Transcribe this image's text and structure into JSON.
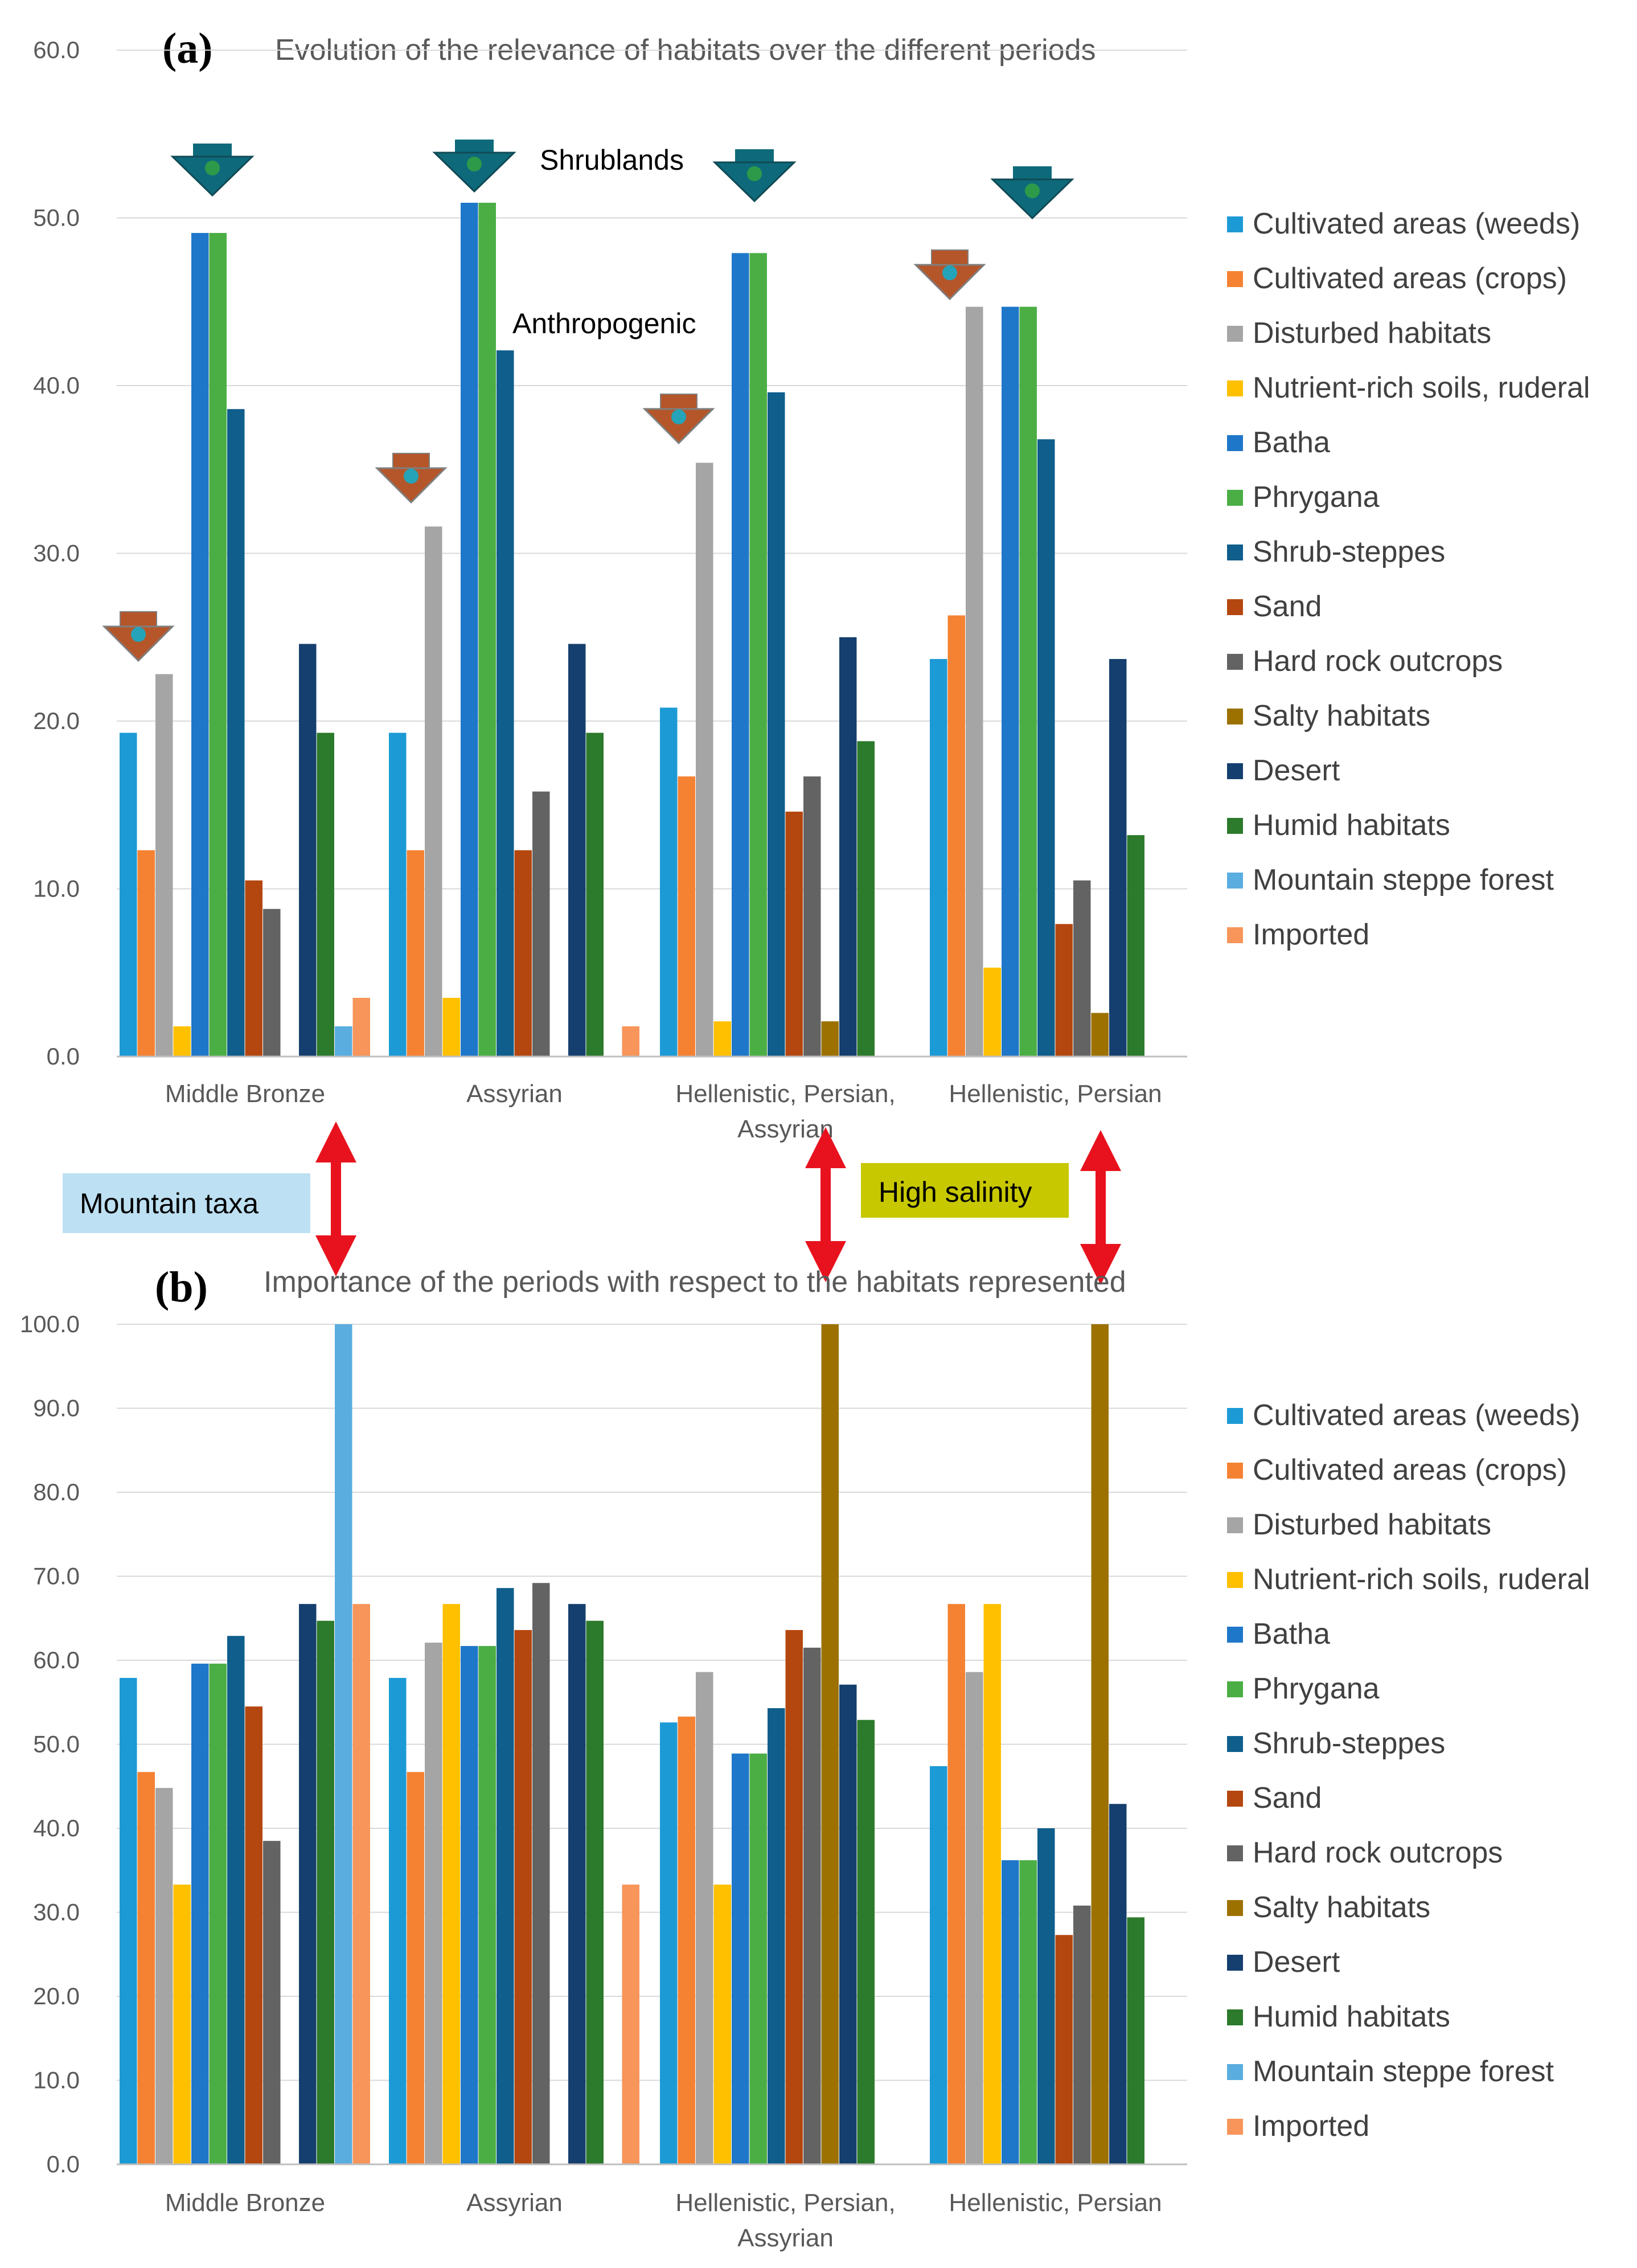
{
  "legend_labels": [
    "Cultivated areas (weeds)",
    "Cultivated areas (crops)",
    "Disturbed habitats",
    "Nutrient-rich soils, ruderal",
    "Batha",
    "Phrygana",
    "Shrub-steppes",
    "Sand",
    "Hard rock outcrops",
    "Salty habitats",
    "Desert",
    "Humid habitats",
    "Mountain steppe forest",
    "Imported"
  ],
  "colors": [
    "#1c9ad6",
    "#f58232",
    "#a5a5a5",
    "#ffc000",
    "#1f77c9",
    "#4bae45",
    "#0f5e8c",
    "#b4470f",
    "#636363",
    "#9c7100",
    "#153f6e",
    "#2c7a2b",
    "#5aaddf",
    "#f7955a"
  ],
  "annotations": {
    "shrublands": "Shrublands",
    "anthropogenic": "Anthropogenic",
    "mountain_taxa": "Mountain taxa",
    "high_salinity": "High salinity"
  },
  "chart_data": [
    {
      "type": "bar",
      "panel_label": "(a)",
      "title": "Evolution of the relevance of habitats over the different periods",
      "categories": [
        "Middle Bronze",
        "Assyrian",
        "Hellenistic, Persian, Assyrian",
        "Hellenistic, Persian"
      ],
      "ylim": [
        0,
        60
      ],
      "yticks": [
        "0.0",
        "10.0",
        "20.0",
        "30.0",
        "40.0",
        "50.0",
        "60.0"
      ],
      "legend_position": "right",
      "series": [
        {
          "name": "Cultivated areas (weeds)",
          "values": [
            19.3,
            19.3,
            20.8,
            23.7
          ]
        },
        {
          "name": "Cultivated areas (crops)",
          "values": [
            12.3,
            12.3,
            16.7,
            26.3
          ]
        },
        {
          "name": "Disturbed habitats",
          "values": [
            22.8,
            31.6,
            35.4,
            44.7
          ]
        },
        {
          "name": "Nutrient-rich soils, ruderal",
          "values": [
            1.8,
            3.5,
            2.1,
            5.3
          ]
        },
        {
          "name": "Batha",
          "values": [
            49.1,
            50.9,
            47.9,
            44.7
          ]
        },
        {
          "name": "Phrygana",
          "values": [
            49.1,
            50.9,
            47.9,
            44.7
          ]
        },
        {
          "name": "Shrub-steppes",
          "values": [
            38.6,
            42.1,
            39.6,
            36.8
          ]
        },
        {
          "name": "Sand",
          "values": [
            10.5,
            12.3,
            14.6,
            7.9
          ]
        },
        {
          "name": "Hard rock outcrops",
          "values": [
            8.8,
            15.8,
            16.7,
            10.5
          ]
        },
        {
          "name": "Salty habitats",
          "values": [
            0,
            0,
            2.1,
            2.6
          ]
        },
        {
          "name": "Desert",
          "values": [
            24.6,
            24.6,
            25.0,
            23.7
          ]
        },
        {
          "name": "Humid habitats",
          "values": [
            19.3,
            19.3,
            18.8,
            13.2
          ]
        },
        {
          "name": "Mountain steppe forest",
          "values": [
            1.8,
            0,
            0,
            0
          ]
        },
        {
          "name": "Imported",
          "values": [
            3.5,
            1.8,
            0,
            0
          ]
        }
      ]
    },
    {
      "type": "bar",
      "panel_label": "(b)",
      "title": "Importance of the periods with respect to the habitats represented",
      "categories": [
        "Middle Bronze",
        "Assyrian",
        "Hellenistic, Persian, Assyrian",
        "Hellenistic, Persian"
      ],
      "ylim": [
        0,
        100
      ],
      "yticks": [
        "0.0",
        "10.0",
        "20.0",
        "30.0",
        "40.0",
        "50.0",
        "60.0",
        "70.0",
        "80.0",
        "90.0",
        "100.0"
      ],
      "legend_position": "right",
      "series": [
        {
          "name": "Cultivated areas (weeds)",
          "values": [
            57.9,
            57.9,
            52.6,
            47.4
          ]
        },
        {
          "name": "Cultivated areas (crops)",
          "values": [
            46.7,
            46.7,
            53.3,
            66.7
          ]
        },
        {
          "name": "Disturbed habitats",
          "values": [
            44.8,
            62.1,
            58.6,
            58.6
          ]
        },
        {
          "name": "Nutrient-rich soils, ruderal",
          "values": [
            33.3,
            66.7,
            33.3,
            66.7
          ]
        },
        {
          "name": "Batha",
          "values": [
            59.6,
            61.7,
            48.9,
            36.2
          ]
        },
        {
          "name": "Phrygana",
          "values": [
            59.6,
            61.7,
            48.9,
            36.2
          ]
        },
        {
          "name": "Shrub-steppes",
          "values": [
            62.9,
            68.6,
            54.3,
            40.0
          ]
        },
        {
          "name": "Sand",
          "values": [
            54.5,
            63.6,
            63.6,
            27.3
          ]
        },
        {
          "name": "Hard rock outcrops",
          "values": [
            38.5,
            69.2,
            61.5,
            30.8
          ]
        },
        {
          "name": "Salty habitats",
          "values": [
            0,
            0,
            100,
            100
          ]
        },
        {
          "name": "Desert",
          "values": [
            66.7,
            66.7,
            57.1,
            42.9
          ]
        },
        {
          "name": "Humid habitats",
          "values": [
            64.7,
            64.7,
            52.9,
            29.4
          ]
        },
        {
          "name": "Mountain steppe forest",
          "values": [
            100,
            0,
            0,
            0
          ]
        },
        {
          "name": "Imported",
          "values": [
            66.7,
            33.3,
            0,
            0
          ]
        }
      ]
    }
  ]
}
